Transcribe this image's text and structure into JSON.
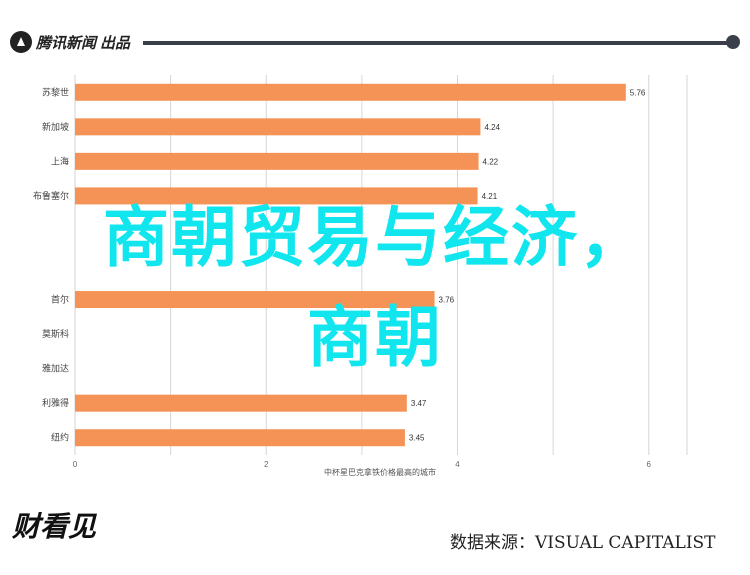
{
  "header": {
    "logo_text": "腾讯新闻",
    "logo_badge": "出品"
  },
  "chart_data": {
    "type": "bar",
    "orientation": "horizontal",
    "categories": [
      "苏黎世",
      "新加坡",
      "上海",
      "布鲁塞尔",
      "",
      "",
      "首尔",
      "莫斯科",
      "雅加达",
      "利雅得",
      "纽约"
    ],
    "values": [
      5.76,
      4.24,
      4.22,
      4.21,
      null,
      null,
      3.76,
      null,
      null,
      3.47,
      3.45
    ],
    "value_labels": [
      "5.76",
      "4.24",
      "4.22",
      "4.21",
      "",
      "",
      "3.76",
      "",
      "",
      "3.47",
      "3.45"
    ],
    "xticks": [
      0,
      2,
      4,
      6
    ],
    "xlim": [
      0,
      6.4
    ],
    "xlabel": "中杯星巴克拿铁价格最高的城市",
    "bar_color": "#f59357",
    "grid": true
  },
  "overlay": {
    "line1": "商朝贸易与经济，",
    "line2": "商朝"
  },
  "footer": {
    "brand_text": "财看见",
    "source": "数据来源：VISUAL CAPITALIST"
  },
  "colors": {
    "overlay": "#11e5ee",
    "bar": "#f59357",
    "grid": "#d6d6d6"
  }
}
